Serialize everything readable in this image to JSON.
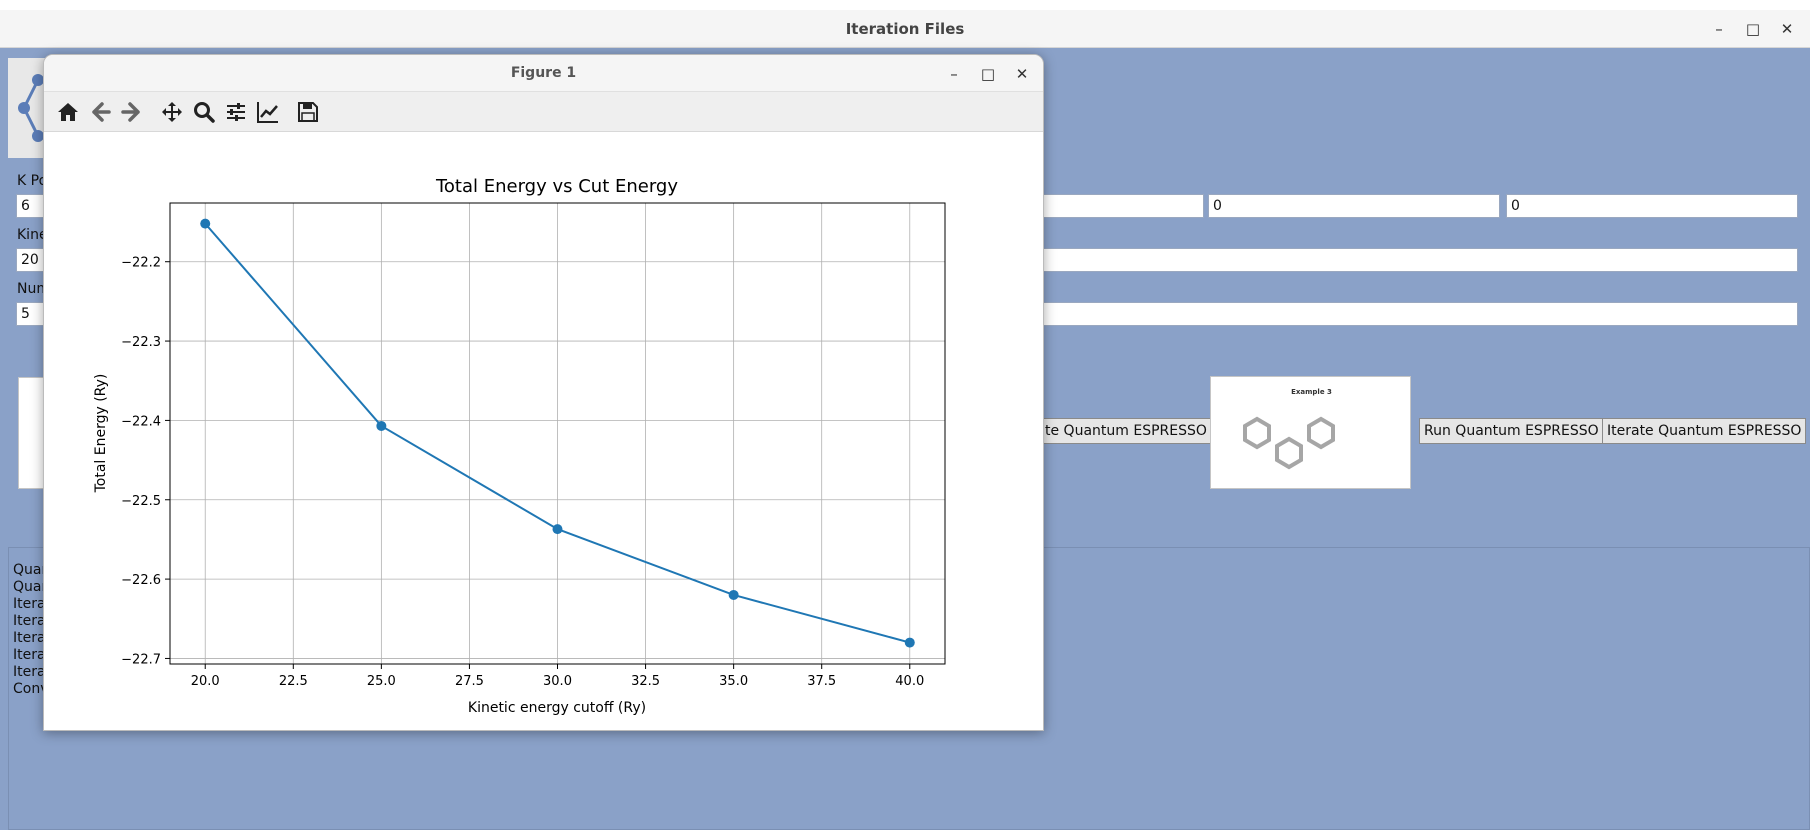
{
  "main_window": {
    "title": "Iteration Files"
  },
  "window_controls": {
    "minimize": "–",
    "maximize": "□",
    "close": "✕"
  },
  "form": {
    "kpoints_label": "K Po",
    "kinetic_label": "Kine",
    "num_label": "Num",
    "kpoint_values": [
      "6",
      "0",
      "0"
    ],
    "kinetic_value": "20",
    "num_value": "5"
  },
  "buttons": {
    "iterate_partial": "te Quantum ESPRESSO",
    "run": "Run Quantum ESPRESSO",
    "iterate": "Iterate Quantum ESPRESSO"
  },
  "example_image": {
    "caption": "Example 3"
  },
  "log_lines": [
    "Quan",
    "Quan",
    "Itera",
    "Itera",
    "Itera",
    "Itera",
    "Itera",
    "Conv"
  ],
  "figure_window": {
    "title": "Figure 1",
    "toolbar": [
      "home-icon",
      "back-icon",
      "forward-icon",
      "pan-icon",
      "zoom-icon",
      "configure-subplots-icon",
      "edit-axis-icon",
      "save-icon"
    ]
  },
  "chart_data": {
    "type": "line",
    "title": "Total Energy vs Cut Energy",
    "xlabel": "Kinetic energy cutoff (Ry)",
    "ylabel": "Total Energy (Ry)",
    "x": [
      20,
      25,
      30,
      35,
      40
    ],
    "y": [
      -22.152,
      -22.407,
      -22.537,
      -22.62,
      -22.68
    ],
    "xlim": [
      19,
      41
    ],
    "ylim": [
      -22.707,
      -22.126
    ],
    "xticks": [
      20.0,
      22.5,
      25.0,
      27.5,
      30.0,
      32.5,
      35.0,
      37.5,
      40.0
    ],
    "yticks": [
      -22.2,
      -22.3,
      -22.4,
      -22.5,
      -22.6,
      -22.7
    ],
    "xtick_labels": [
      "20.0",
      "22.5",
      "25.0",
      "27.5",
      "30.0",
      "32.5",
      "35.0",
      "37.5",
      "40.0"
    ],
    "ytick_labels": [
      "−22.2",
      "−22.3",
      "−22.4",
      "−22.5",
      "−22.6",
      "−22.7"
    ],
    "grid": true,
    "color": "#1f77b4",
    "marker": "circle"
  }
}
